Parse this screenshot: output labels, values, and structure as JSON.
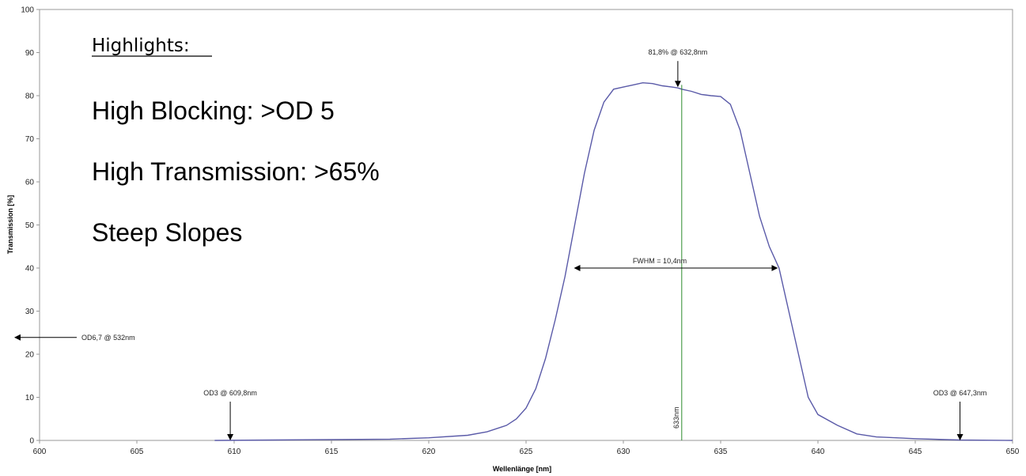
{
  "chart_data": {
    "type": "line",
    "title": "",
    "xlabel": "Wellenlänge [nm]",
    "ylabel": "Transmission [%]",
    "xlim": [
      600,
      650
    ],
    "ylim": [
      0,
      100
    ],
    "x_ticks": [
      600,
      605,
      610,
      615,
      620,
      625,
      630,
      635,
      640,
      645,
      650
    ],
    "y_ticks": [
      0,
      10,
      20,
      30,
      40,
      50,
      60,
      70,
      80,
      90,
      100
    ],
    "grid": false,
    "line_color": "#5a5aa8",
    "marker_line_color": "#2e8b2e",
    "series": [
      {
        "x": [
          609.0,
          612.0,
          615.0,
          618.0,
          620.0,
          622.0,
          623.0,
          624.0,
          624.5,
          625.0,
          625.5,
          626.0,
          626.5,
          627.0,
          627.5,
          628.0,
          628.5,
          629.0,
          629.5,
          630.0,
          630.5,
          631.0,
          631.5,
          632.0,
          632.5,
          632.8,
          633.0,
          633.5,
          634.0,
          634.5,
          635.0,
          635.5,
          636.0,
          636.5,
          637.0,
          637.5,
          638.0,
          638.5,
          639.0,
          639.5,
          640.0,
          641.0,
          642.0,
          643.0,
          645.0,
          647.3,
          650.0
        ],
        "y": [
          0.0,
          0.1,
          0.2,
          0.3,
          0.6,
          1.2,
          2.0,
          3.5,
          5.0,
          7.5,
          12.0,
          19.0,
          28.0,
          38.0,
          50.0,
          62.0,
          72.0,
          78.5,
          81.5,
          82.0,
          82.5,
          83.0,
          82.8,
          82.3,
          82.0,
          81.8,
          81.5,
          81.0,
          80.3,
          80.0,
          79.8,
          78.0,
          72.0,
          62.0,
          52.0,
          45.0,
          40.0,
          30.0,
          20.0,
          10.0,
          6.0,
          3.5,
          1.5,
          0.8,
          0.4,
          0.1,
          0.0
        ]
      }
    ],
    "center_line": {
      "x": 633,
      "label": "633nm"
    },
    "annotations": [
      {
        "text": "81,8% @ 632,8nm",
        "x": 632.8,
        "y": 81.8
      },
      {
        "text": "FWHM = 10,4nm",
        "x1": 627.5,
        "x2": 637.9,
        "y": 40
      },
      {
        "text": "OD6,7 @ 532nm",
        "x": 600,
        "y": 25
      },
      {
        "text": "OD3 @ 609,8nm",
        "x": 609.8,
        "y": 0
      },
      {
        "text": "OD3 @ 647,3nm",
        "x": 647.3,
        "y": 0
      }
    ]
  },
  "highlights": {
    "title": "Highlights:",
    "items": [
      "High Blocking: >OD 5",
      "High Transmission: >65%",
      "Steep Slopes"
    ]
  }
}
